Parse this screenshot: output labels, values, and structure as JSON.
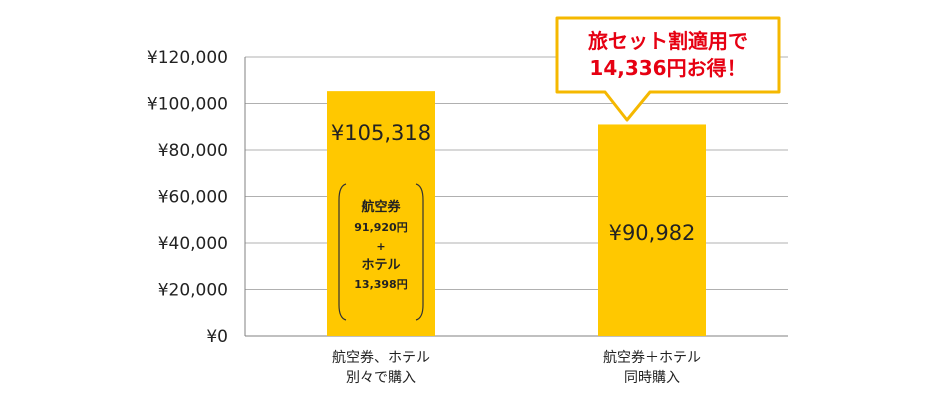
{
  "chart_data": {
    "type": "bar",
    "categories": [
      [
        "航空券、ホテル",
        "別々で購入"
      ],
      [
        "航空券＋ホテル",
        "同時購入"
      ]
    ],
    "values": [
      105318,
      90982
    ],
    "data_labels": [
      "¥105,318",
      "¥90,982"
    ],
    "yticks": [
      0,
      20000,
      40000,
      60000,
      80000,
      100000,
      120000
    ],
    "ytick_labels": [
      "¥0",
      "¥20,000",
      "¥40,000",
      "¥60,000",
      "¥80,000",
      "¥100,000",
      "¥120,000"
    ],
    "ylim": [
      0,
      120000
    ],
    "grid": true,
    "bar_color": "#FFC800",
    "breakdown": {
      "lines": [
        "航空券",
        "91,920円",
        "+",
        "ホテル",
        "13,398円"
      ]
    },
    "callout": {
      "lines": [
        "旅セット割適用で",
        "14,336円お得！"
      ],
      "text_color": "#E60012",
      "border_color": "#F5B800"
    }
  }
}
